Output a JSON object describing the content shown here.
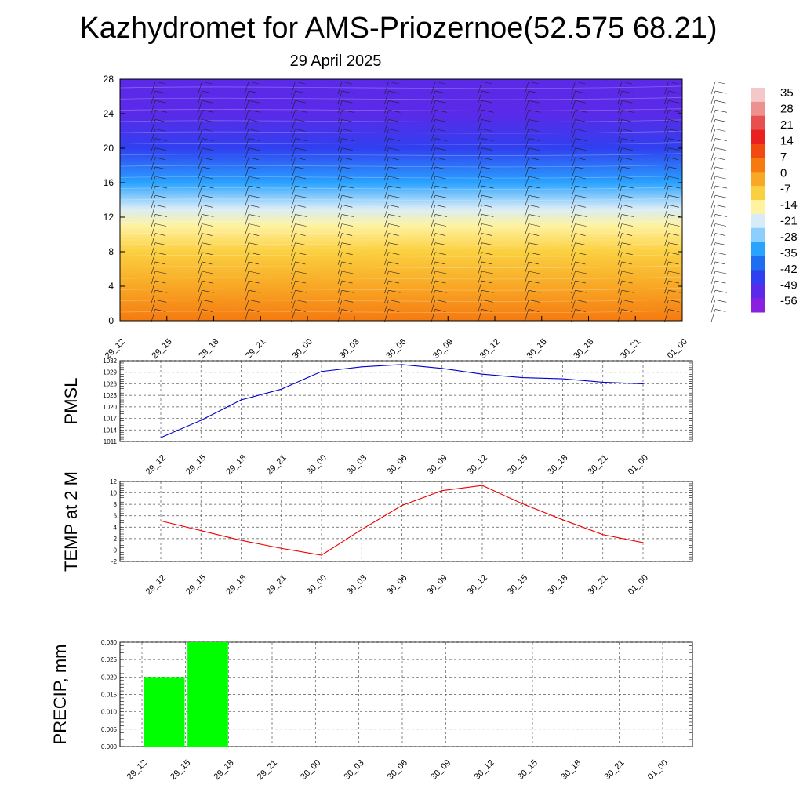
{
  "title": "Kazhydromet for AMS-Priozernoe(52.575 68.21)",
  "subtitle": "29 April 2025",
  "chart_data": [
    {
      "type": "heatmap",
      "name": "vertical-profile",
      "x_tick_labels": [
        "29_12",
        "29_15",
        "29_18",
        "29_21",
        "30_00",
        "30_03",
        "30_06",
        "30_09",
        "30_12",
        "30_15",
        "30_18",
        "30_21",
        "01_00"
      ],
      "y_tick_labels": [
        "0",
        "4",
        "8",
        "12",
        "16",
        "20",
        "24",
        "28"
      ],
      "ylim": [
        0,
        28
      ],
      "colorbar_labels": [
        "35",
        "28",
        "21",
        "14",
        "7",
        "0",
        "-7",
        "-14",
        "-21",
        "-28",
        "-35",
        "-42",
        "-49",
        "-56"
      ],
      "colorbar_colors": [
        "#f4c8c8",
        "#ee9090",
        "#e85050",
        "#e82020",
        "#f04a10",
        "#f57a10",
        "#f8a825",
        "#fbd040",
        "#fff2a0",
        "#d8ecf8",
        "#8ccfff",
        "#29a3ff",
        "#1e6ef0",
        "#3040f0",
        "#5a2ae8",
        "#8a20e0"
      ],
      "temperature_profile": [
        {
          "height": 0,
          "value": 4
        },
        {
          "height": 4,
          "value": 0
        },
        {
          "height": 8,
          "value": -8
        },
        {
          "height": 11,
          "value": -14
        },
        {
          "height": 13,
          "value": -25
        },
        {
          "height": 16,
          "value": -40
        },
        {
          "height": 20,
          "value": -52
        },
        {
          "height": 24,
          "value": -56
        },
        {
          "height": 28,
          "value": -58
        }
      ]
    },
    {
      "type": "line",
      "name": "pmsl",
      "ylabel": "PMSL",
      "categories": [
        "29_12",
        "29_15",
        "29_18",
        "29_21",
        "30_00",
        "30_03",
        "30_06",
        "30_09",
        "30_12",
        "30_15",
        "30_18",
        "30_21",
        "01_00"
      ],
      "y_tick_labels": [
        "1011",
        "1014",
        "1017",
        "1020",
        "1023",
        "1026",
        "1029",
        "1032"
      ],
      "ylim": [
        1011,
        1032
      ],
      "values": [
        1012,
        1016.5,
        1021.8,
        1024.6,
        1029.2,
        1030.4,
        1031,
        1030,
        1028.5,
        1027.6,
        1027.3,
        1026.4,
        1026
      ],
      "color": "#0000cc",
      "grid": true
    },
    {
      "type": "line",
      "name": "temperature-2m",
      "ylabel": "TEMP at 2 M",
      "categories": [
        "29_12",
        "29_15",
        "29_18",
        "29_21",
        "30_00",
        "30_03",
        "30_06",
        "30_09",
        "30_12",
        "30_15",
        "30_18",
        "30_21",
        "01_00"
      ],
      "y_tick_labels": [
        "-2",
        "0",
        "2",
        "4",
        "6",
        "8",
        "10",
        "12"
      ],
      "ylim": [
        -2,
        12
      ],
      "values": [
        5.1,
        3.4,
        1.7,
        0.3,
        -0.9,
        3.6,
        7.8,
        10.4,
        11.3,
        8.1,
        5.3,
        2.7,
        1.3
      ],
      "color": "#ee0000",
      "grid": true
    },
    {
      "type": "bar",
      "name": "precipitation",
      "ylabel": "PRECIP, mm",
      "categories": [
        "29_12",
        "29_15",
        "29_18",
        "29_21",
        "30_00",
        "30_03",
        "30_06",
        "30_09",
        "30_12",
        "30_15",
        "30_18",
        "30_21",
        "01_00"
      ],
      "y_tick_labels": [
        "0.000",
        "0.005",
        "0.010",
        "0.015",
        "0.020",
        "0.025",
        "0.030"
      ],
      "ylim": [
        0,
        0.03
      ],
      "values": [
        0,
        0.02,
        0.03,
        0,
        0,
        0,
        0,
        0,
        0,
        0,
        0,
        0,
        0
      ],
      "color": "#00ff00",
      "grid": true
    }
  ]
}
